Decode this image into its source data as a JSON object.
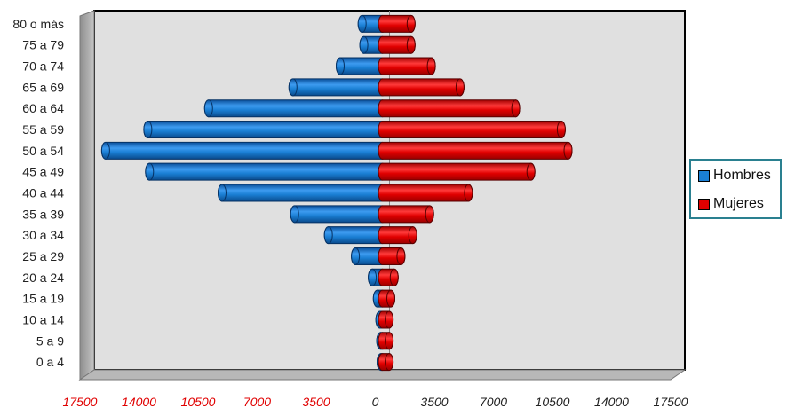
{
  "chart_data": {
    "type": "bar",
    "orientation": "horizontal",
    "subtype": "population-pyramid",
    "categories": [
      "0 a 4",
      "5 a 9",
      "10 a 14",
      "15 a 19",
      "20 a 24",
      "25 a 29",
      "30 a 34",
      "35 a 39",
      "40 a 44",
      "45 a 49",
      "50 a 54",
      "55 a 59",
      "60 a 64",
      "65 a 69",
      "70 a 74",
      "75 a 79",
      "80 o más"
    ],
    "series": [
      {
        "name": "Hombres",
        "color": "#1a7fd4",
        "side": "left",
        "values": [
          80,
          100,
          150,
          300,
          600,
          1600,
          3200,
          5200,
          9500,
          13800,
          16400,
          13900,
          10300,
          5300,
          2500,
          1100,
          1200
        ]
      },
      {
        "name": "Mujeres",
        "color": "#e00000",
        "side": "right",
        "values": [
          400,
          400,
          400,
          500,
          700,
          1100,
          1800,
          2800,
          5100,
          8800,
          11000,
          10600,
          7900,
          4600,
          2900,
          1700,
          1700
        ]
      }
    ],
    "xlim": [
      -17500,
      17500
    ],
    "x_ticks": [
      -17500,
      -14000,
      -10500,
      -7000,
      -3500,
      0,
      3500,
      7000,
      10500,
      14000,
      17500
    ],
    "x_tick_labels": [
      "17500",
      "14000",
      "10500",
      "7000",
      "3500",
      "0",
      "3500",
      "7000",
      "10500",
      "14000",
      "17500"
    ],
    "negative_tick_color": "#e00000",
    "legend_position": "right",
    "grid": false,
    "title": "",
    "xlabel": "",
    "ylabel": ""
  },
  "legend": {
    "hombres": "Hombres",
    "mujeres": "Mujeres"
  }
}
